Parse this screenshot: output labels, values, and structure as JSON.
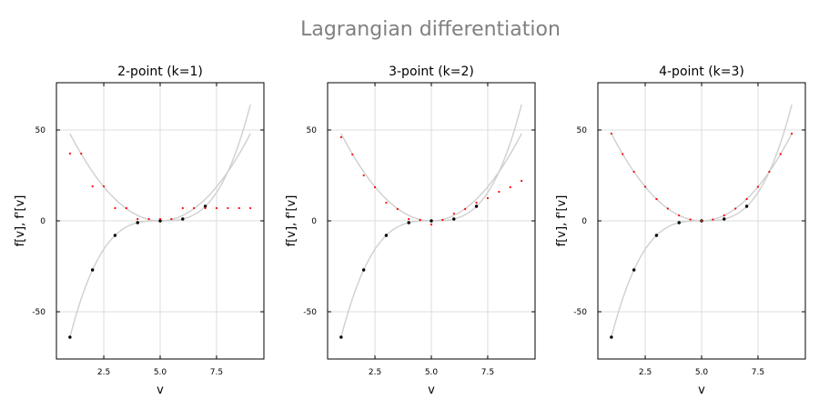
{
  "figure": {
    "suptitle": "Lagrangian differentiation"
  },
  "colors": {
    "title": "#808080",
    "curve": "#cfcfcf",
    "grid": "#dcdcdc",
    "samples": "#000000",
    "derivative": "#ff0000"
  },
  "chart_data": [
    {
      "type": "scatter",
      "title": "2-point (k=1)",
      "xlabel": "v",
      "ylabel": "f[v],   f'[v]",
      "xlim": [
        0.4,
        9.6
      ],
      "ylim": [
        -76,
        76
      ],
      "xticks": [
        2.5,
        5.0,
        7.5
      ],
      "xtick_labels": [
        "2.5",
        "5.0",
        "7.5"
      ],
      "yticks": [
        -50,
        0,
        50
      ],
      "ytick_labels": [
        "-50",
        "0",
        "50"
      ],
      "grid": true,
      "series": [
        {
          "kind": "line",
          "function": "cubic",
          "x": [
            1,
            9
          ]
        },
        {
          "kind": "line",
          "function": "derivative",
          "x": [
            1,
            9
          ]
        },
        {
          "kind": "points",
          "color": "#000000",
          "x": [
            1,
            2,
            3,
            4,
            5,
            6,
            7
          ],
          "y": [
            -64,
            -27,
            -8,
            -1,
            0,
            1,
            8
          ]
        },
        {
          "kind": "points",
          "color": "#ff0000",
          "x": [
            1,
            1.5,
            2,
            2.5,
            3,
            3.5,
            4,
            4.5,
            5,
            5.5,
            6,
            6.5,
            7,
            7.5,
            8,
            8.5,
            9
          ],
          "y": [
            37,
            37,
            19,
            19,
            7,
            7,
            1,
            1,
            1,
            1,
            7,
            7,
            7,
            7,
            7,
            7,
            7
          ]
        }
      ]
    },
    {
      "type": "scatter",
      "title": "3-point (k=2)",
      "xlabel": "v",
      "ylabel": "f[v],   f'[v]",
      "xlim": [
        0.4,
        9.6
      ],
      "ylim": [
        -76,
        76
      ],
      "xticks": [
        2.5,
        5.0,
        7.5
      ],
      "xtick_labels": [
        "2.5",
        "5.0",
        "7.5"
      ],
      "yticks": [
        -50,
        0,
        50
      ],
      "ytick_labels": [
        "-50",
        "0",
        "50"
      ],
      "grid": true,
      "series": [
        {
          "kind": "line",
          "function": "cubic",
          "x": [
            1,
            9
          ]
        },
        {
          "kind": "line",
          "function": "derivative",
          "x": [
            1,
            9
          ]
        },
        {
          "kind": "points",
          "color": "#000000",
          "x": [
            1,
            2,
            3,
            4,
            5,
            6,
            7
          ],
          "y": [
            -64,
            -27,
            -8,
            -1,
            0,
            1,
            8
          ]
        },
        {
          "kind": "points",
          "color": "#ff0000",
          "x": [
            1,
            1.5,
            2,
            2.5,
            3,
            3.5,
            4,
            4.5,
            5,
            5.5,
            6,
            6.5,
            7,
            7.5,
            8,
            8.5,
            9
          ],
          "y": [
            46,
            36.5,
            25,
            18.5,
            10,
            6.5,
            1,
            0.5,
            -2,
            0.5,
            4,
            6.5,
            10,
            12.5,
            16,
            18.5,
            22
          ]
        }
      ]
    },
    {
      "type": "scatter",
      "title": "4-point (k=3)",
      "xlabel": "v",
      "ylabel": "f[v],   f'[v]",
      "xlim": [
        0.4,
        9.6
      ],
      "ylim": [
        -76,
        76
      ],
      "xticks": [
        2.5,
        5.0,
        7.5
      ],
      "xtick_labels": [
        "2.5",
        "5.0",
        "7.5"
      ],
      "yticks": [
        -50,
        0,
        50
      ],
      "ytick_labels": [
        "-50",
        "0",
        "50"
      ],
      "grid": true,
      "series": [
        {
          "kind": "line",
          "function": "cubic",
          "x": [
            1,
            9
          ]
        },
        {
          "kind": "line",
          "function": "derivative",
          "x": [
            1,
            9
          ]
        },
        {
          "kind": "points",
          "color": "#000000",
          "x": [
            1,
            2,
            3,
            4,
            5,
            6,
            7
          ],
          "y": [
            -64,
            -27,
            -8,
            -1,
            0,
            1,
            8
          ]
        },
        {
          "kind": "points",
          "color": "#ff0000",
          "x": [
            1,
            1.5,
            2,
            2.5,
            3,
            3.5,
            4,
            4.5,
            5,
            5.5,
            6,
            6.5,
            7,
            7.5,
            8,
            8.5,
            9
          ],
          "y": [
            48,
            36.75,
            27,
            18.75,
            12,
            6.75,
            3,
            0.75,
            0,
            0.75,
            3,
            6.75,
            12,
            18.75,
            27,
            36.75,
            48
          ]
        }
      ]
    }
  ]
}
